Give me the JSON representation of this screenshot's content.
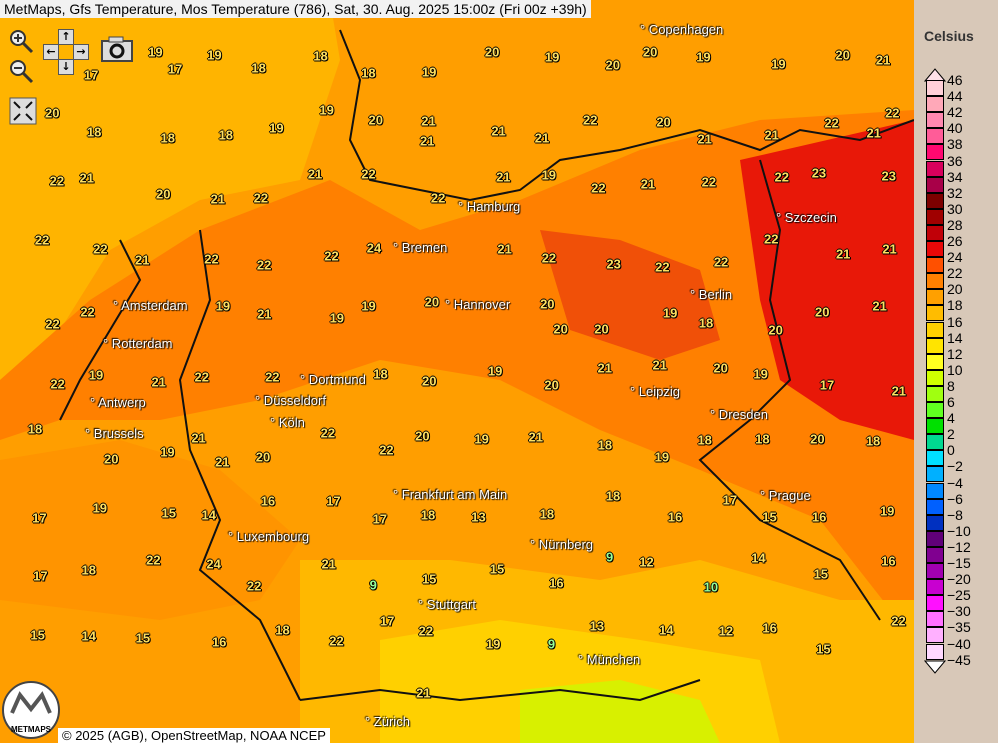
{
  "title": "MetMaps, Gfs Temperature, Mos Temperature (786), Sat, 30. Aug. 2025 15:00z (Fri 00z +39h)",
  "controls": {
    "zoom_in": "zoom-in",
    "zoom_out": "zoom-out",
    "pan_up": "↑",
    "pan_down": "↓",
    "pan_left": "←",
    "pan_right": "→",
    "camera": "camera",
    "fullscreen": "fullscreen"
  },
  "cities": [
    "Copenhagen",
    "Hamburg",
    "Bremen",
    "Szczecin",
    "Amsterdam",
    "Hannover",
    "Berlin",
    "Rotterdam",
    "Dortmund",
    "Antwerp",
    "Düsseldorf",
    "Leipzig",
    "Dresden",
    "Brussels",
    "Köln",
    "Frankfurt am Main",
    "Prague",
    "Luxembourg",
    "Nürnberg",
    "Stuttgart",
    "München",
    "Zürich"
  ],
  "temperatures": [
    17,
    17,
    19,
    19,
    18,
    18,
    18,
    19,
    20,
    19,
    20,
    20,
    19,
    19,
    20,
    21,
    20,
    18,
    18,
    18,
    19,
    19,
    20,
    21,
    21,
    21,
    22,
    20,
    21,
    21,
    22,
    21,
    22,
    21,
    20,
    21,
    22,
    21,
    22,
    22,
    21,
    19,
    22,
    21,
    22,
    22,
    23,
    23,
    22,
    22,
    21,
    22,
    22,
    22,
    24,
    21,
    21,
    22,
    23,
    22,
    22,
    22,
    21,
    21,
    22,
    22,
    20,
    19,
    21,
    19,
    19,
    20,
    21,
    20,
    20,
    19,
    18,
    20,
    20,
    21,
    22,
    19,
    21,
    22,
    22,
    21,
    18,
    20,
    19,
    20,
    21,
    21,
    20,
    19,
    17,
    21,
    18,
    20,
    19,
    21,
    20,
    22,
    22,
    20,
    19,
    21,
    18,
    19,
    18,
    18,
    20,
    18,
    17,
    19,
    15,
    14,
    16,
    17,
    17,
    18,
    13,
    18,
    18,
    16,
    17,
    15,
    16,
    19,
    17,
    18,
    22,
    24,
    22,
    21,
    9,
    15,
    15,
    16,
    9,
    12,
    10,
    14,
    15,
    16,
    15,
    14,
    15,
    16,
    18,
    22,
    17,
    22,
    19,
    9,
    13,
    14,
    12,
    16,
    15,
    22,
    22
  ],
  "legend": {
    "title": "Celsius",
    "labels": [
      "46",
      "44",
      "42",
      "40",
      "38",
      "36",
      "34",
      "32",
      "30",
      "28",
      "26",
      "24",
      "22",
      "20",
      "18",
      "16",
      "14",
      "12",
      "10",
      "8",
      "6",
      "4",
      "2",
      "0",
      "−2",
      "−4",
      "−6",
      "−8",
      "−10",
      "−12",
      "−15",
      "−20",
      "−25",
      "−30",
      "−35",
      "−40",
      "−45"
    ],
    "colors": [
      "#ffd0d8",
      "#ffa8b8",
      "#ff88b0",
      "#ff5c98",
      "#ff0870",
      "#d8005c",
      "#a80048",
      "#7c0000",
      "#a00000",
      "#c00008",
      "#e80808",
      "#ff5000",
      "#ff8000",
      "#ffa000",
      "#ffbc00",
      "#ffd000",
      "#ffe400",
      "#ffff20",
      "#d0ff00",
      "#a0ff10",
      "#60ff20",
      "#00e000",
      "#00d890",
      "#00e0ff",
      "#00b0ff",
      "#0088ff",
      "#0060ff",
      "#0030c0",
      "#600078",
      "#800090",
      "#a000b0",
      "#c800d0",
      "#ff10ff",
      "#ff70ff",
      "#ffb0ff",
      "#ffd8ff"
    ]
  },
  "copyright": "© 2025 (AGB), OpenStreetMap, NOAA NCEP",
  "logo": "METMAPS"
}
